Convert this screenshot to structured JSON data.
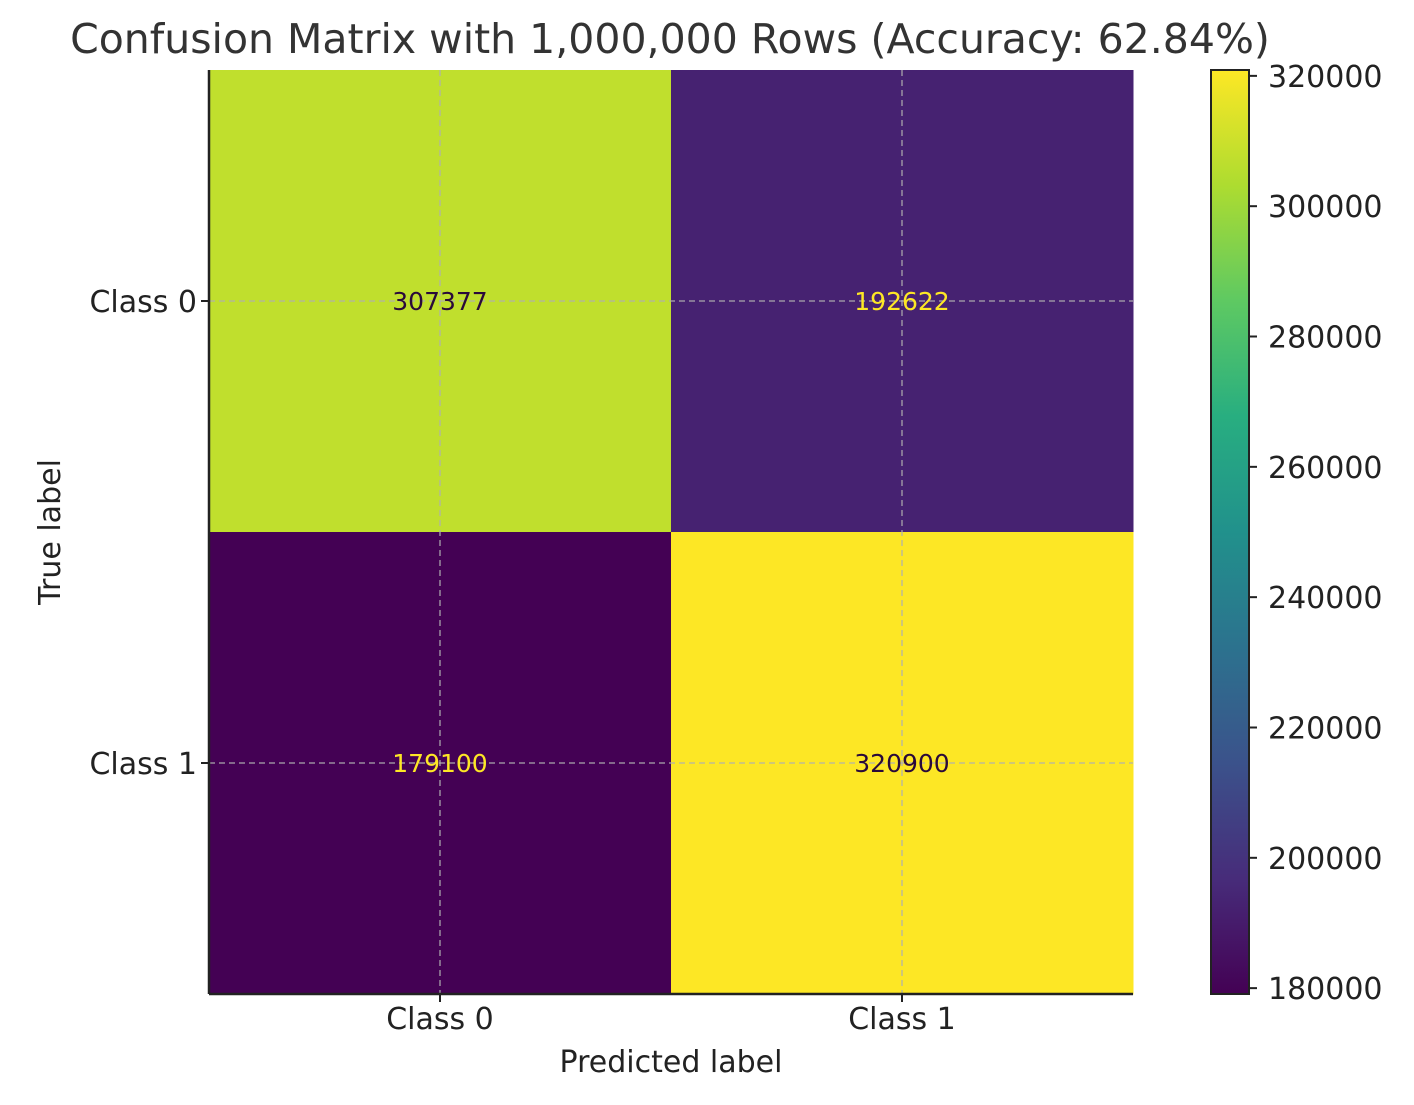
{
  "chart_data": {
    "type": "heatmap",
    "title": "Confusion Matrix with 1,000,000 Rows (Accuracy: 62.84%)",
    "xlabel": "Predicted label",
    "ylabel": "True label",
    "x_categories": [
      "Class 0",
      "Class 1"
    ],
    "y_categories": [
      "Class 0",
      "Class 1"
    ],
    "values": [
      [
        307377,
        192622
      ],
      [
        179100,
        320900
      ]
    ],
    "value_labels": [
      [
        "307377",
        "192622"
      ],
      [
        "179100",
        "320900"
      ]
    ],
    "colormap": "viridis",
    "grid": true,
    "colorbar": {
      "vmin": 179100,
      "vmax": 320900,
      "ticks": [
        180000,
        200000,
        220000,
        240000,
        260000,
        280000,
        300000,
        320000
      ],
      "tick_labels": [
        "180000",
        "200000",
        "220000",
        "240000",
        "260000",
        "280000",
        "300000",
        "320000"
      ],
      "placement": "right"
    }
  }
}
